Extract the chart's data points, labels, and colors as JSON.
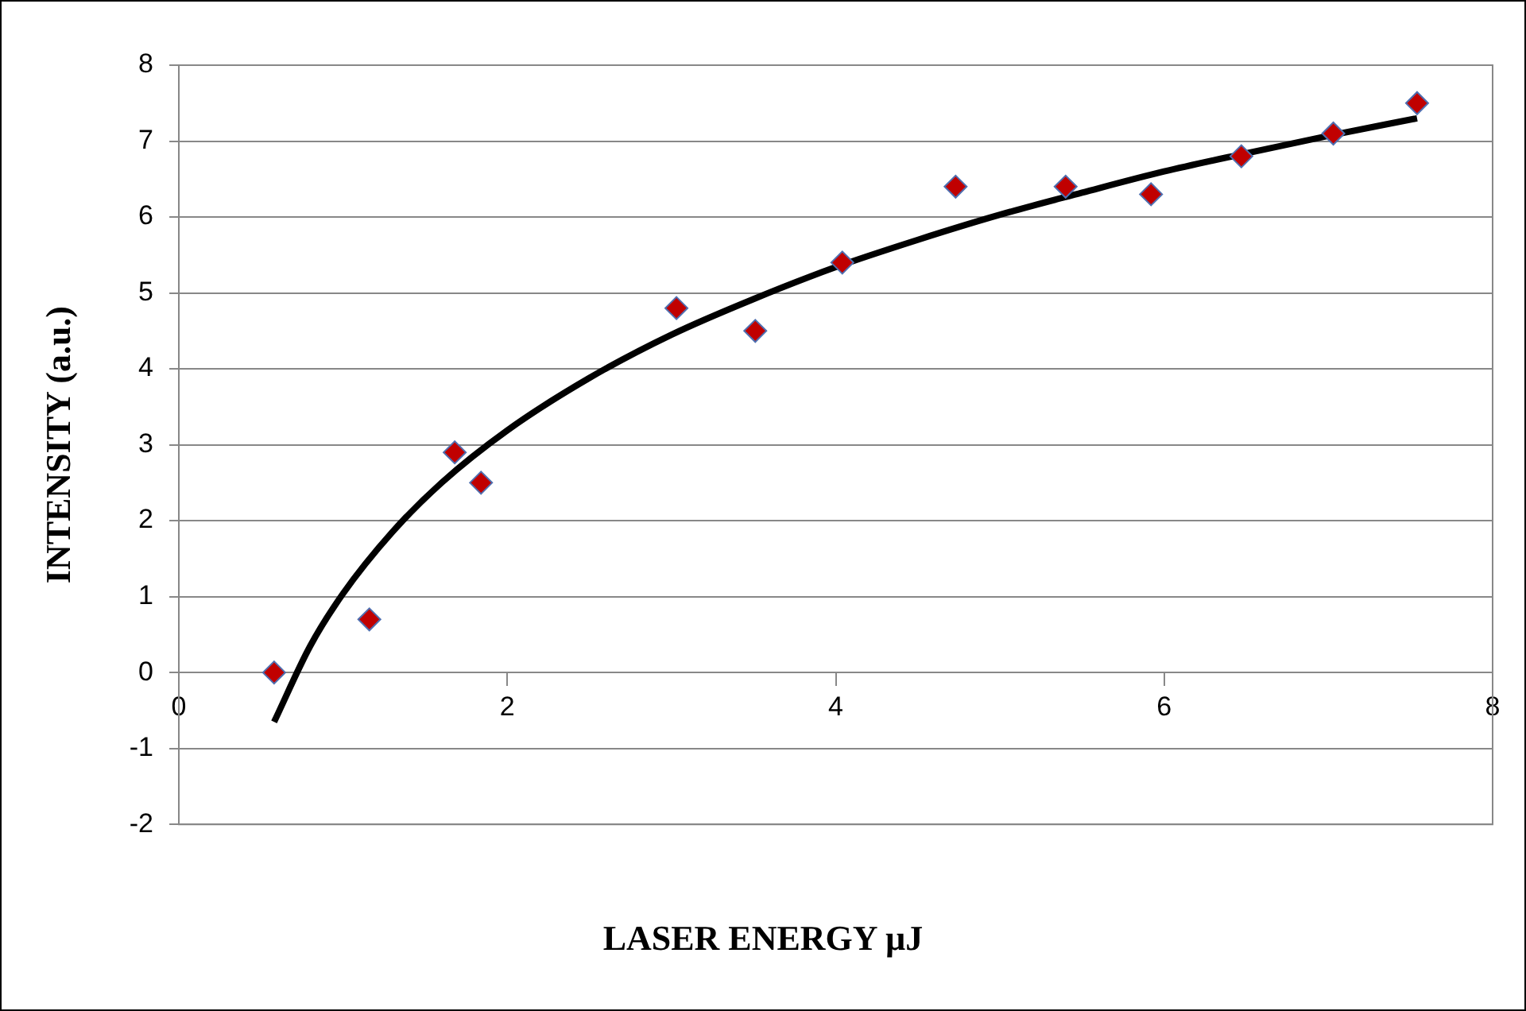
{
  "chart_data": {
    "type": "scatter",
    "xlabel": "LASER ENERGY µJ",
    "ylabel": "INTENSITY (a.u.)",
    "series": [
      {
        "color": "#c00000",
        "marker": "diamond",
        "x": [
          0.58,
          1.16,
          1.68,
          1.84,
          3.03,
          3.51,
          4.04,
          4.73,
          5.4,
          5.92,
          6.47,
          7.03,
          7.54
        ],
        "values": [
          0,
          0.7,
          2.9,
          2.5,
          4.8,
          4.5,
          5.4,
          6.4,
          6.4,
          6.3,
          6.8,
          7.1,
          7.5
        ]
      },
      {
        "type": "line",
        "color": "#000000",
        "marker": "none",
        "x": [
          0.58,
          0.8,
          1,
          1.3,
          1.6,
          2,
          2.5,
          3,
          3.5,
          4,
          4.5,
          5,
          5.5,
          6,
          6.5,
          7,
          7.54
        ],
        "values": [
          -0.65,
          0.35,
          1.04,
          1.85,
          2.5,
          3.19,
          3.88,
          4.45,
          4.92,
          5.34,
          5.7,
          6.03,
          6.32,
          6.6,
          6.84,
          7.07,
          7.3
        ]
      }
    ],
    "xlim": [
      0,
      8
    ],
    "xticks": [
      0,
      2,
      4,
      6,
      8
    ],
    "ylim": [
      -2,
      8
    ],
    "yticks": [
      -2,
      -1,
      0,
      1,
      2,
      3,
      4,
      5,
      6,
      7,
      8
    ],
    "grid": "y",
    "legend": false
  }
}
